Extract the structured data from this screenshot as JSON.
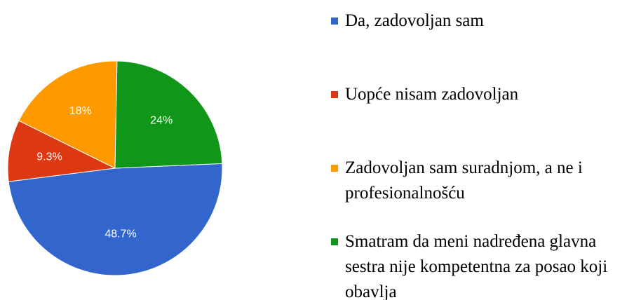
{
  "chart_data": {
    "type": "pie",
    "categories": [
      "Da, zadovoljan sam",
      "Uopće nisam zadovoljan",
      "Zadovoljan sam suradnjom, a ne i profesionalnošću",
      "Smatram da meni nadređena glavna sestra nije kompetentna za posao koji obavlja"
    ],
    "values": [
      48.7,
      9.3,
      18,
      24
    ],
    "value_labels": [
      "48.7%",
      "9.3%",
      "18%",
      "24%"
    ],
    "colors": [
      "#3366cc",
      "#dc3912",
      "#ff9900",
      "#109618"
    ],
    "legend": "right"
  }
}
